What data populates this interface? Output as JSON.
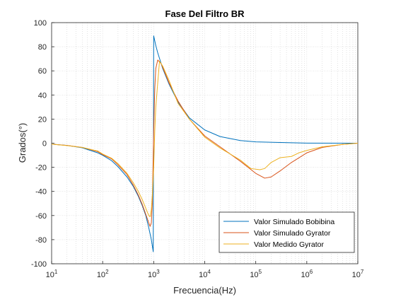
{
  "chart_data": {
    "type": "line",
    "title": "Fase Del Filtro BR",
    "xlabel": "Frecuencia(Hz)",
    "ylabel": "Grados(°)",
    "xscale": "log",
    "xlim": [
      10,
      10000000
    ],
    "ylim": [
      -100,
      100
    ],
    "x_tick_labels": [
      {
        "value": 10,
        "base": "10",
        "exp": "1"
      },
      {
        "value": 100,
        "base": "10",
        "exp": "2"
      },
      {
        "value": 1000,
        "base": "10",
        "exp": "3"
      },
      {
        "value": 10000,
        "base": "10",
        "exp": "4"
      },
      {
        "value": 100000,
        "base": "10",
        "exp": "5"
      },
      {
        "value": 1000000,
        "base": "10",
        "exp": "6"
      },
      {
        "value": 10000000,
        "base": "10",
        "exp": "7"
      }
    ],
    "y_ticks": [
      -100,
      -80,
      -60,
      -40,
      -20,
      0,
      20,
      40,
      60,
      80,
      100
    ],
    "grid": true,
    "minor_grid": true,
    "legend_position": "bottom-right",
    "series": [
      {
        "name": "Valor Simulado Bobibina",
        "color": "#0072BD",
        "points": [
          [
            10,
            -0.8
          ],
          [
            20,
            -1.8
          ],
          [
            40,
            -3.8
          ],
          [
            80,
            -8
          ],
          [
            100,
            -10
          ],
          [
            150,
            -14.5
          ],
          [
            200,
            -19.5
          ],
          [
            300,
            -28
          ],
          [
            400,
            -36
          ],
          [
            500,
            -44
          ],
          [
            600,
            -52
          ],
          [
            700,
            -60
          ],
          [
            800,
            -70
          ],
          [
            900,
            -80
          ],
          [
            980,
            -90
          ],
          [
            1000,
            89
          ],
          [
            1100,
            81
          ],
          [
            1200,
            75
          ],
          [
            1500,
            62
          ],
          [
            2000,
            49
          ],
          [
            3000,
            34
          ],
          [
            5000,
            21
          ],
          [
            10000,
            11
          ],
          [
            20000,
            5.5
          ],
          [
            50000,
            2.2
          ],
          [
            100000,
            1.1
          ],
          [
            1000000,
            0.1
          ],
          [
            10000000,
            0
          ]
        ]
      },
      {
        "name": "Valor Simulado Gyrator",
        "color": "#D95319",
        "points": [
          [
            10,
            -0.8
          ],
          [
            20,
            -1.8
          ],
          [
            40,
            -3.5
          ],
          [
            80,
            -7
          ],
          [
            100,
            -9.5
          ],
          [
            150,
            -13
          ],
          [
            200,
            -18
          ],
          [
            300,
            -26
          ],
          [
            400,
            -35
          ],
          [
            500,
            -43
          ],
          [
            600,
            -51
          ],
          [
            700,
            -59
          ],
          [
            800,
            -66
          ],
          [
            850,
            -69
          ],
          [
            900,
            -66
          ],
          [
            940,
            -50
          ],
          [
            970,
            -20
          ],
          [
            1000,
            10
          ],
          [
            1050,
            45
          ],
          [
            1100,
            62
          ],
          [
            1200,
            69
          ],
          [
            1400,
            66
          ],
          [
            1600,
            60
          ],
          [
            2000,
            50
          ],
          [
            3000,
            35
          ],
          [
            5000,
            20
          ],
          [
            10000,
            6
          ],
          [
            20000,
            -3
          ],
          [
            50000,
            -15
          ],
          [
            100000,
            -25
          ],
          [
            150000,
            -29
          ],
          [
            200000,
            -28
          ],
          [
            300000,
            -23
          ],
          [
            500000,
            -16
          ],
          [
            1000000,
            -8
          ],
          [
            2000000,
            -3.5
          ],
          [
            5000000,
            -1
          ],
          [
            10000000,
            0
          ]
        ]
      },
      {
        "name": "Valor Medido Gyrator",
        "color": "#EDB120",
        "points": [
          [
            10,
            -0.8
          ],
          [
            20,
            -2
          ],
          [
            40,
            -3.5
          ],
          [
            80,
            -6.5
          ],
          [
            100,
            -9
          ],
          [
            150,
            -12.5
          ],
          [
            200,
            -17
          ],
          [
            300,
            -25
          ],
          [
            400,
            -33
          ],
          [
            500,
            -40
          ],
          [
            600,
            -47
          ],
          [
            700,
            -54
          ],
          [
            800,
            -60
          ],
          [
            850,
            -61
          ],
          [
            900,
            -55
          ],
          [
            950,
            -40
          ],
          [
            1000,
            -20
          ],
          [
            1050,
            10
          ],
          [
            1100,
            30
          ],
          [
            1200,
            50
          ],
          [
            1300,
            68
          ],
          [
            1500,
            64
          ],
          [
            2000,
            52
          ],
          [
            3000,
            33
          ],
          [
            5000,
            20
          ],
          [
            10000,
            5
          ],
          [
            20000,
            -4
          ],
          [
            50000,
            -14
          ],
          [
            80000,
            -21
          ],
          [
            120000,
            -22
          ],
          [
            150000,
            -21
          ],
          [
            200000,
            -16
          ],
          [
            300000,
            -12
          ],
          [
            500000,
            -11
          ],
          [
            700000,
            -8
          ],
          [
            1000000,
            -6
          ],
          [
            2000000,
            -3
          ],
          [
            5000000,
            -1
          ],
          [
            10000000,
            0
          ]
        ]
      }
    ]
  }
}
